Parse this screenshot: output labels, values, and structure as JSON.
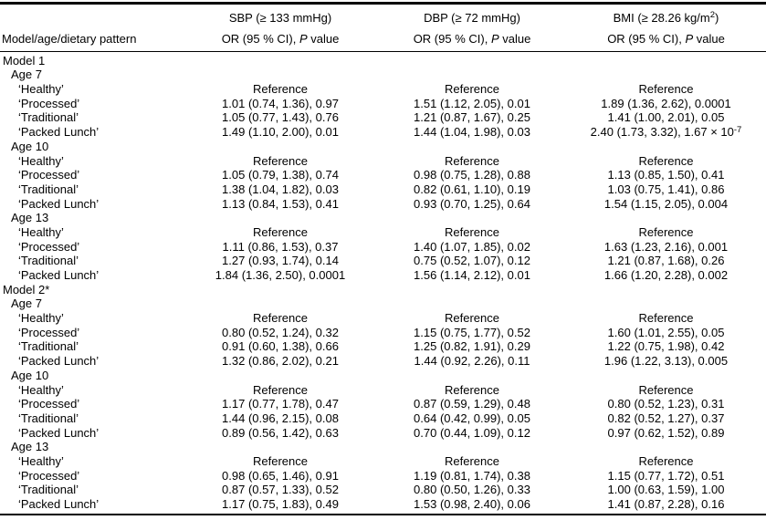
{
  "table": {
    "header": {
      "row_label": "Model/age/dietary pattern",
      "groups": [
        {
          "title": "SBP (≥ 133 mmHg)",
          "title_sup": "",
          "title_end": "",
          "sub_pre": "OR (95 % CI), ",
          "sub_p": "P",
          "sub_post": " value"
        },
        {
          "title": "DBP (≥ 72 mmHg)",
          "title_sup": "",
          "title_end": "",
          "sub_pre": "OR (95 % CI), ",
          "sub_p": "P",
          "sub_post": " value"
        },
        {
          "title": "BMI (≥ 28.26 kg/m",
          "title_sup": "2",
          "title_end": ")",
          "sub_pre": "OR (95 % CI), ",
          "sub_p": "P",
          "sub_post": " value"
        }
      ]
    },
    "rows": [
      {
        "label": "Model 1",
        "indent": 0,
        "sbp": "",
        "dbp": "",
        "bmi": ""
      },
      {
        "label": "Age 7",
        "indent": 1,
        "sbp": "",
        "dbp": "",
        "bmi": ""
      },
      {
        "label": "‘Healthy’",
        "indent": 2,
        "sbp": "Reference",
        "dbp": "Reference",
        "bmi": "Reference"
      },
      {
        "label": "‘Processed’",
        "indent": 2,
        "sbp": "1.01 (0.74, 1.36), 0.97",
        "dbp": "1.51 (1.12, 2.05), 0.01",
        "bmi": "1.89 (1.36, 2.62), 0.0001"
      },
      {
        "label": "‘Traditional’",
        "indent": 2,
        "sbp": "1.05 (0.77, 1.43), 0.76",
        "dbp": "1.21 (0.87, 1.67), 0.25",
        "bmi": "1.41 (1.00, 2.01), 0.05"
      },
      {
        "label": "‘Packed Lunch’",
        "indent": 2,
        "sbp": "1.49 (1.10, 2.00), 0.01",
        "dbp": "1.44 (1.04, 1.98), 0.03",
        "bmi": "2.40 (1.73, 3.32), 1.67 × 10",
        "bmi_sup": "-7"
      },
      {
        "label": "Age 10",
        "indent": 1,
        "sbp": "",
        "dbp": "",
        "bmi": ""
      },
      {
        "label": "‘Healthy’",
        "indent": 2,
        "sbp": "Reference",
        "dbp": "Reference",
        "bmi": "Reference"
      },
      {
        "label": "‘Processed’",
        "indent": 2,
        "sbp": "1.05 (0.79, 1.38), 0.74",
        "dbp": "0.98 (0.75, 1.28), 0.88",
        "bmi": "1.13 (0.85, 1.50), 0.41"
      },
      {
        "label": "‘Traditional’",
        "indent": 2,
        "sbp": "1.38 (1.04, 1.82), 0.03",
        "dbp": "0.82 (0.61, 1.10), 0.19",
        "bmi": "1.03 (0.75, 1.41), 0.86"
      },
      {
        "label": "‘Packed Lunch’",
        "indent": 2,
        "sbp": "1.13 (0.84, 1.53), 0.41",
        "dbp": "0.93 (0.70, 1.25), 0.64",
        "bmi": "1.54 (1.15, 2.05), 0.004"
      },
      {
        "label": "Age 13",
        "indent": 1,
        "sbp": "",
        "dbp": "",
        "bmi": ""
      },
      {
        "label": "‘Healthy’",
        "indent": 2,
        "sbp": "Reference",
        "dbp": "Reference",
        "bmi": "Reference"
      },
      {
        "label": "‘Processed’",
        "indent": 2,
        "sbp": "1.11 (0.86, 1.53), 0.37",
        "dbp": "1.40 (1.07, 1.85), 0.02",
        "bmi": "1.63 (1.23, 2.16), 0.001"
      },
      {
        "label": "‘Traditional’",
        "indent": 2,
        "sbp": "1.27 (0.93, 1.74), 0.14",
        "dbp": "0.75 (0.52, 1.07), 0.12",
        "bmi": "1.21 (0.87, 1.68), 0.26"
      },
      {
        "label": "‘Packed Lunch’",
        "indent": 2,
        "sbp": "1.84 (1.36, 2.50), 0.0001",
        "dbp": "1.56 (1.14, 2.12), 0.01",
        "bmi": "1.66 (1.20, 2.28), 0.002"
      },
      {
        "label": "Model 2*",
        "indent": 0,
        "sbp": "",
        "dbp": "",
        "bmi": ""
      },
      {
        "label": "Age 7",
        "indent": 1,
        "sbp": "",
        "dbp": "",
        "bmi": ""
      },
      {
        "label": "‘Healthy’",
        "indent": 2,
        "sbp": "Reference",
        "dbp": "Reference",
        "bmi": "Reference"
      },
      {
        "label": "‘Processed’",
        "indent": 2,
        "sbp": "0.80 (0.52, 1.24), 0.32",
        "dbp": "1.15 (0.75, 1.77), 0.52",
        "bmi": "1.60 (1.01, 2.55), 0.05"
      },
      {
        "label": "‘Traditional’",
        "indent": 2,
        "sbp": "0.91 (0.60, 1.38), 0.66",
        "dbp": "1.25 (0.82, 1.91), 0.29",
        "bmi": "1.22 (0.75, 1.98), 0.42"
      },
      {
        "label": "‘Packed Lunch’",
        "indent": 2,
        "sbp": "1.32 (0.86, 2.02), 0.21",
        "dbp": "1.44 (0.92, 2.26), 0.11",
        "bmi": "1.96 (1.22, 3.13), 0.005"
      },
      {
        "label": "Age 10",
        "indent": 1,
        "sbp": "",
        "dbp": "",
        "bmi": ""
      },
      {
        "label": "‘Healthy’",
        "indent": 2,
        "sbp": "Reference",
        "dbp": "Reference",
        "bmi": "Reference"
      },
      {
        "label": "‘Processed’",
        "indent": 2,
        "sbp": "1.17 (0.77, 1.78), 0.47",
        "dbp": "0.87 (0.59, 1.29), 0.48",
        "bmi": "0.80 (0.52, 1.23), 0.31"
      },
      {
        "label": "‘Traditional’",
        "indent": 2,
        "sbp": "1.44 (0.96, 2.15), 0.08",
        "dbp": "0.64 (0.42, 0.99), 0.05",
        "bmi": "0.82 (0.52, 1.27), 0.37"
      },
      {
        "label": "‘Packed Lunch’",
        "indent": 2,
        "sbp": "0.89 (0.56, 1.42), 0.63",
        "dbp": "0.70 (0.44, 1.09), 0.12",
        "bmi": "0.97 (0.62, 1.52), 0.89"
      },
      {
        "label": "Age 13",
        "indent": 1,
        "sbp": "",
        "dbp": "",
        "bmi": ""
      },
      {
        "label": "‘Healthy’",
        "indent": 2,
        "sbp": "Reference",
        "dbp": "Reference",
        "bmi": "Reference"
      },
      {
        "label": "‘Processed’",
        "indent": 2,
        "sbp": "0.98 (0.65, 1.46), 0.91",
        "dbp": "1.19 (0.81, 1.74), 0.38",
        "bmi": "1.15 (0.77, 1.72), 0.51"
      },
      {
        "label": "‘Traditional’",
        "indent": 2,
        "sbp": "0.87 (0.57, 1.33), 0.52",
        "dbp": "0.80 (0.50, 1.26), 0.33",
        "bmi": "1.00 (0.63, 1.59), 1.00"
      },
      {
        "label": "‘Packed Lunch’",
        "indent": 2,
        "sbp": "1.17 (0.75, 1.83), 0.49",
        "dbp": "1.53 (0.98, 2.40), 0.06",
        "bmi": "1.41 (0.87, 2.28), 0.16"
      }
    ]
  }
}
